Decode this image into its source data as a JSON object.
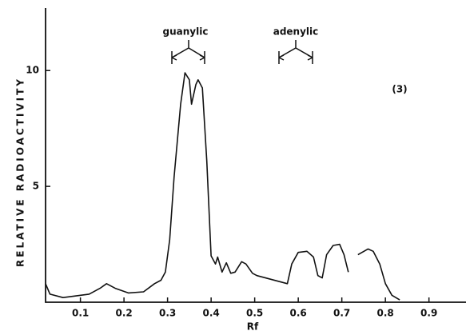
{
  "chart_data": {
    "type": "line",
    "xlabel": "Rf",
    "ylabel": "RELATIVE RADIOACTIVITY",
    "annotations": [
      "guanylic",
      "adenylic",
      "(3)"
    ],
    "x": [
      0.02,
      0.03,
      0.06,
      0.12,
      0.145,
      0.16,
      0.18,
      0.21,
      0.245,
      0.27,
      0.285,
      0.295,
      0.305,
      0.315,
      0.33,
      0.34,
      0.35,
      0.355,
      0.365,
      0.37,
      0.38,
      0.39,
      0.4,
      0.41,
      0.415,
      0.425,
      0.435,
      0.445,
      0.455,
      0.47,
      0.48,
      0.495,
      0.505,
      0.575,
      0.585,
      0.6,
      0.62,
      0.635,
      0.645,
      0.655,
      0.665,
      0.68,
      0.695,
      0.705,
      0.715,
      0.726,
      0.737,
      0.76,
      0.772,
      0.787,
      0.8,
      0.815,
      0.833
    ],
    "series": [
      {
        "color": "#111111",
        "values": [
          0.8,
          0.35,
          0.2,
          0.35,
          0.6,
          0.8,
          0.6,
          0.4,
          0.45,
          0.8,
          0.95,
          1.3,
          2.7,
          5.4,
          8.55,
          9.9,
          9.6,
          8.55,
          9.4,
          9.6,
          9.25,
          6.1,
          2.0,
          1.65,
          1.95,
          1.3,
          1.7,
          1.25,
          1.3,
          1.75,
          1.65,
          1.25,
          1.15,
          0.8,
          1.65,
          2.15,
          2.2,
          1.95,
          1.15,
          1.05,
          2.05,
          2.45,
          2.5,
          2.05,
          1.3,
          null,
          2.05,
          2.3,
          2.2,
          1.65,
          0.8,
          0.3,
          0.1
        ]
      }
    ],
    "xlim": [
      0.02,
      0.985
    ],
    "ylim": [
      0,
      12.7
    ],
    "xticks": [
      0.1,
      0.2,
      0.3,
      0.4,
      0.5,
      0.6,
      0.7,
      0.8,
      0.9
    ],
    "yticks": [
      5,
      10
    ]
  }
}
